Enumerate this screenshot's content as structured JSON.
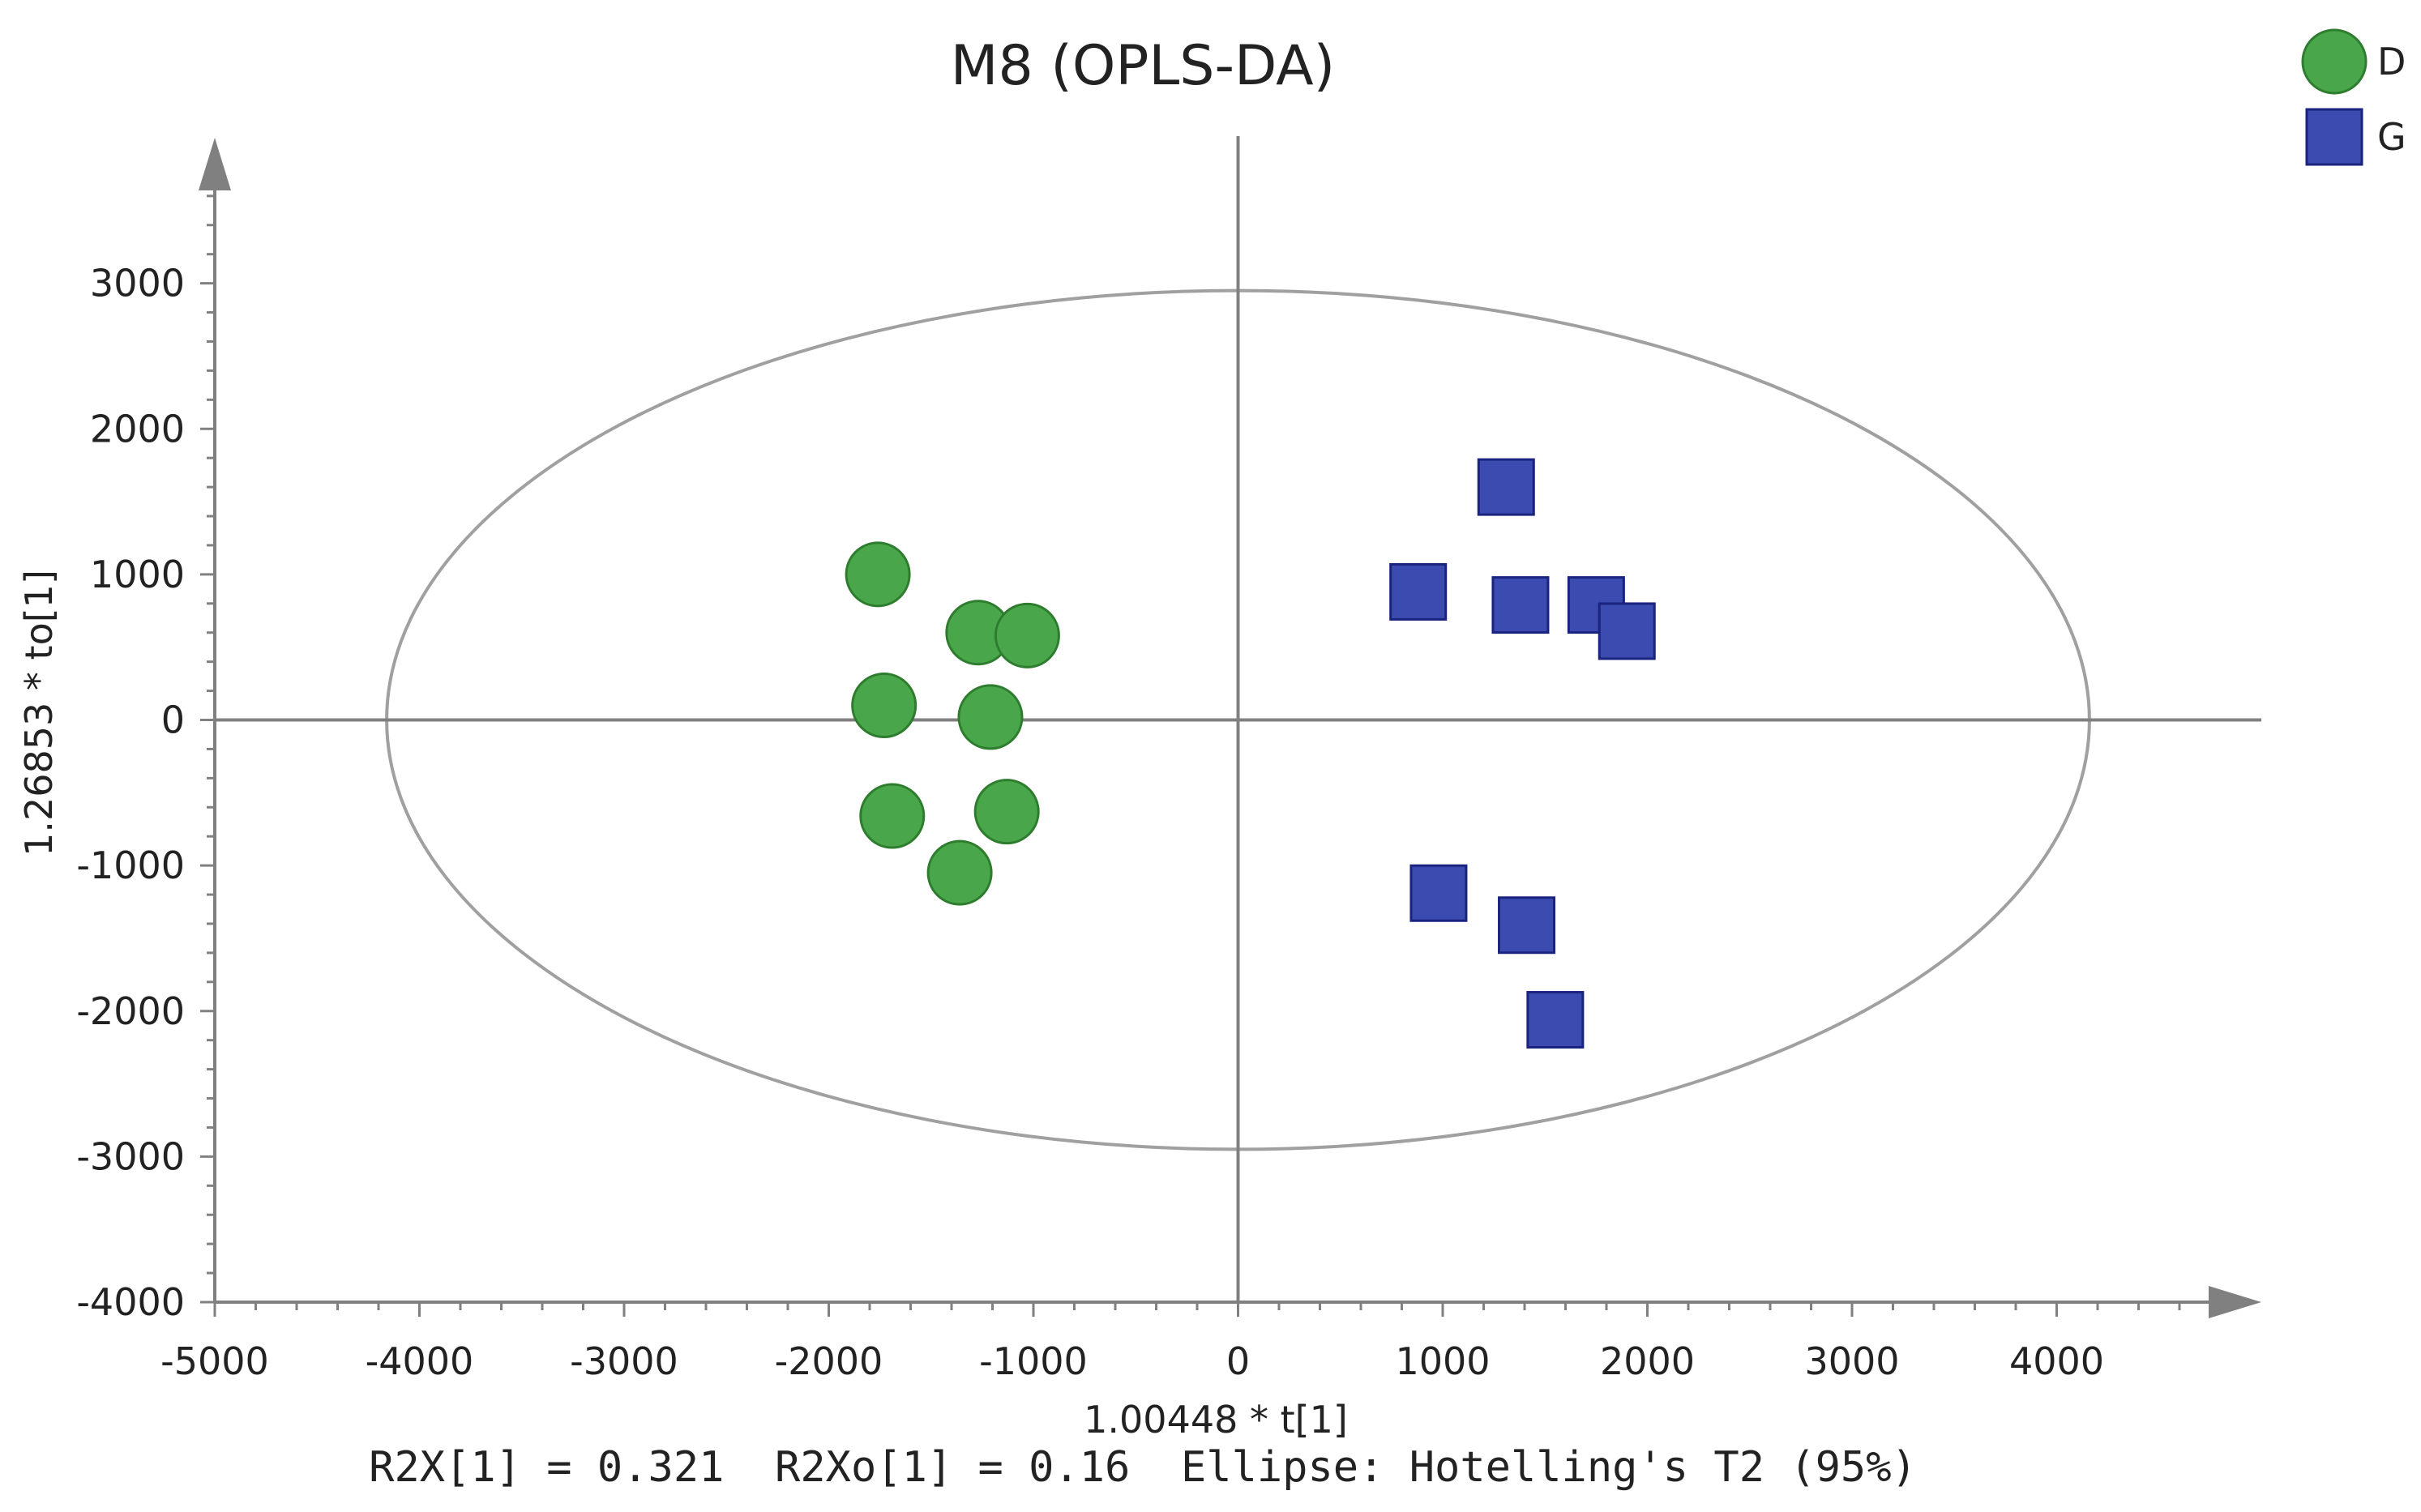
{
  "chart_data": {
    "type": "scatter",
    "title": "M8 (OPLS-DA)",
    "xlabel": "1.00448 * t[1]",
    "ylabel": "1.26853 * to[1]",
    "footer": "R2X[1] = 0.321  R2Xo[1] = 0.16  Ellipse: Hotelling's T2 (95%)",
    "xlim": [
      -5000,
      5000
    ],
    "ylim": [
      -4000,
      4000
    ],
    "xticks": [
      -5000,
      -4000,
      -3000,
      -2000,
      -1000,
      0,
      1000,
      2000,
      3000,
      4000
    ],
    "yticks": [
      -4000,
      -3000,
      -2000,
      -1000,
      0,
      1000,
      2000,
      3000
    ],
    "legend_position": "top-right",
    "ellipse": {
      "label": "Hotelling's T2 (95%)",
      "rx": 4160,
      "ry": 2950,
      "color": "#a0a0a0"
    },
    "series": [
      {
        "name": "D",
        "marker": "circle",
        "color": "#4aa64a",
        "stroke": "#2e7d2e",
        "points": [
          {
            "x": -1760,
            "y": 1000
          },
          {
            "x": -1270,
            "y": 600
          },
          {
            "x": -1030,
            "y": 580
          },
          {
            "x": -1730,
            "y": 100
          },
          {
            "x": -1210,
            "y": 20
          },
          {
            "x": -1690,
            "y": -660
          },
          {
            "x": -1130,
            "y": -630
          },
          {
            "x": -1360,
            "y": -1050
          }
        ]
      },
      {
        "name": "G",
        "marker": "square",
        "color": "#3b4bb0",
        "stroke": "#1a237e",
        "points": [
          {
            "x": 1310,
            "y": 1600
          },
          {
            "x": 880,
            "y": 880
          },
          {
            "x": 1380,
            "y": 790
          },
          {
            "x": 1750,
            "y": 790
          },
          {
            "x": 1900,
            "y": 610
          },
          {
            "x": 980,
            "y": -1190
          },
          {
            "x": 1410,
            "y": -1410
          },
          {
            "x": 1550,
            "y": -2060
          }
        ]
      }
    ]
  }
}
